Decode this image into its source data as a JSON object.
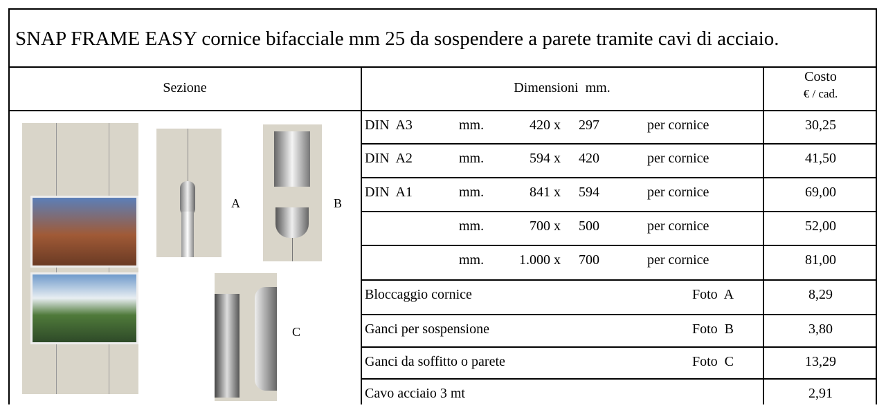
{
  "title": "SNAP FRAME EASY cornice bifacciale mm 25 da sospendere a parete tramite cavi di acciaio.",
  "headers": {
    "section": "Sezione",
    "dimensions": "Dimensioni  mm.",
    "cost": "Costo",
    "cost_unit": "€ / cad."
  },
  "photo_labels": [
    "A",
    "B",
    "C"
  ],
  "frames": [
    {
      "name": "DIN  A3",
      "unit": "mm.",
      "width": "420 x",
      "height": "297",
      "per": "per cornice",
      "cost": "30,25"
    },
    {
      "name": "DIN  A2",
      "unit": "mm.",
      "width": "594 x",
      "height": "420",
      "per": "per cornice",
      "cost": "41,50"
    },
    {
      "name": "DIN  A1",
      "unit": "mm.",
      "width": "841 x",
      "height": "594",
      "per": "per cornice",
      "cost": "69,00"
    },
    {
      "unit": "mm.",
      "width": "700 x",
      "height": "500",
      "per": "per cornice",
      "cost": "52,00"
    },
    {
      "unit": "mm.",
      "width": "1.000 x",
      "height": "700",
      "per": "per cornice",
      "cost": "81,00"
    }
  ],
  "accessories": [
    {
      "name": "Bloccaggio cornice",
      "photo": "Foto  A",
      "cost": "8,29"
    },
    {
      "name": "Ganci per sospensione",
      "photo": "Foto  B",
      "cost": "3,80"
    },
    {
      "name": "Ganci da soffitto o parete",
      "photo": "Foto  C",
      "cost": "13,29"
    },
    {
      "name": "Cavo acciaio 3 mt",
      "cost": "2,91"
    }
  ]
}
